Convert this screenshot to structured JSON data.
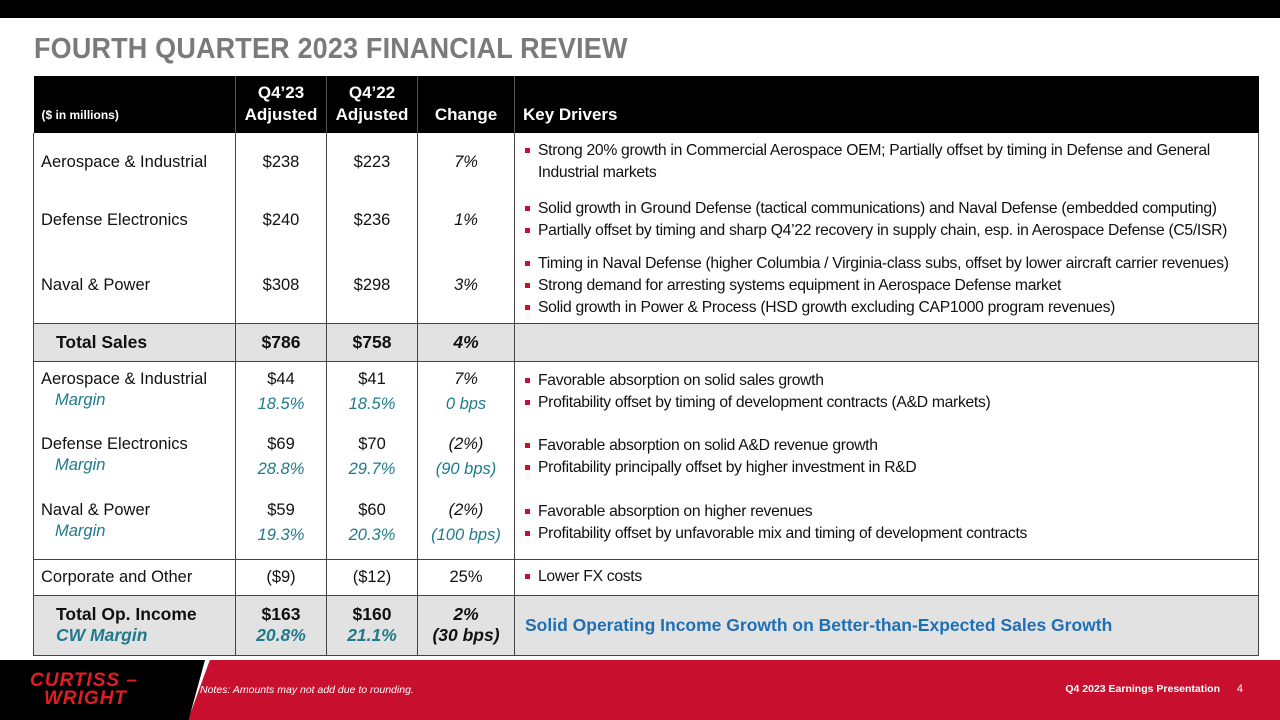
{
  "title": "FOURTH QUARTER 2023 FINANCIAL REVIEW",
  "table": {
    "headers": {
      "unit": "($ in millions)",
      "q4_23_a": "Q4’23",
      "q4_23_b": "Adjusted",
      "q4_22_a": "Q4’22",
      "q4_22_b": "Adjusted",
      "change": "Change",
      "drivers": "Key Drivers"
    },
    "sales_rows": [
      {
        "segment": "Aerospace & Industrial",
        "q4_23": "$238",
        "q4_22": "$223",
        "change": "7%",
        "drivers": [
          "Strong 20% growth in Commercial Aerospace OEM; Partially offset by timing in Defense and General Industrial markets"
        ]
      },
      {
        "segment": "Defense Electronics",
        "q4_23": "$240",
        "q4_22": "$236",
        "change": "1%",
        "drivers": [
          "Solid growth in Ground Defense (tactical communications) and Naval Defense (embedded computing)",
          "Partially offset by timing and sharp Q4’22 recovery in supply chain, esp. in Aerospace Defense (C5/ISR)"
        ]
      },
      {
        "segment": "Naval & Power",
        "q4_23": "$308",
        "q4_22": "$298",
        "change": "3%",
        "drivers": [
          "Timing in Naval Defense (higher Columbia / Virginia-class subs, offset by lower aircraft carrier revenues)",
          "Strong demand for arresting systems equipment in Aerospace Defense market",
          "Solid growth in Power & Process (HSD growth excluding CAP1000 program revenues)"
        ]
      }
    ],
    "total_sales": {
      "label": "Total Sales",
      "q4_23": "$786",
      "q4_22": "$758",
      "change": "4%"
    },
    "opinc_rows": [
      {
        "segment": "Aerospace & Industrial",
        "margin_label": "Margin",
        "q4_23": "$44",
        "q4_23_margin": "18.5%",
        "q4_22": "$41",
        "q4_22_margin": "18.5%",
        "change": "7%",
        "change_margin": "0 bps",
        "drivers": [
          "Favorable absorption on solid sales growth",
          "Profitability  offset by timing of development contracts (A&D markets)"
        ]
      },
      {
        "segment": "Defense Electronics",
        "margin_label": "Margin",
        "q4_23": "$69",
        "q4_23_margin": "28.8%",
        "q4_22": "$70",
        "q4_22_margin": "29.7%",
        "change": "(2%)",
        "change_margin": "(90 bps)",
        "drivers": [
          "Favorable absorption on solid A&D revenue growth",
          "Profitability  principally offset by higher investment in R&D"
        ]
      },
      {
        "segment": "Naval & Power",
        "margin_label": "Margin",
        "q4_23": "$59",
        "q4_23_margin": "19.3%",
        "q4_22": "$60",
        "q4_22_margin": "20.3%",
        "change": "(2%)",
        "change_margin": "(100 bps)",
        "drivers": [
          "Favorable absorption on higher revenues",
          "Profitability  offset by unfavorable mix and timing of development contracts"
        ]
      }
    ],
    "corporate": {
      "label": "Corporate and Other",
      "q4_23": "($9)",
      "q4_22": "($12)",
      "change": "25%",
      "drivers": [
        "Lower FX costs"
      ]
    },
    "total_opinc": {
      "label": "Total Op. Income",
      "label2": "CW Margin",
      "q4_23": "$163",
      "q4_23_margin": "20.8%",
      "q4_22": "$160",
      "q4_22_margin": "21.1%",
      "change": "2%",
      "change_margin": "(30 bps)",
      "headline": "Solid Operating Income Growth on Better-than-Expected Sales Growth"
    }
  },
  "footer": {
    "logo_line1": "CURTISS –",
    "logo_line2": "WRIGHT",
    "note": "Notes: Amounts may not add due to rounding.",
    "presentation": "Q4 2023 Earnings Presentation",
    "page": "4"
  },
  "colors": {
    "accent_red": "#c8102e",
    "margin_teal": "#1f7a8c",
    "headline_blue": "#1f6fb4",
    "title_gray": "#7a7a7a"
  }
}
